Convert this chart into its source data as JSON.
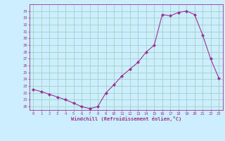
{
  "x": [
    0,
    1,
    2,
    3,
    4,
    5,
    6,
    7,
    8,
    9,
    10,
    11,
    12,
    13,
    14,
    15,
    16,
    17,
    18,
    19,
    20,
    21,
    22,
    23
  ],
  "y": [
    22.5,
    22.2,
    21.8,
    21.4,
    21.0,
    20.5,
    20.0,
    19.7,
    20.0,
    22.0,
    23.2,
    24.5,
    25.5,
    26.5,
    28.0,
    29.0,
    33.5,
    33.3,
    33.8,
    34.0,
    33.5,
    30.5,
    27.0,
    24.2
  ],
  "line_color": "#993399",
  "marker_color": "#993399",
  "bg_color": "#cceeff",
  "grid_color": "#99ccbb",
  "xlabel": "Windchill (Refroidissement éolien,°C)",
  "xlabel_color": "#993399",
  "tick_color": "#993399",
  "ylim": [
    19.5,
    35.0
  ],
  "yticks": [
    20,
    21,
    22,
    23,
    24,
    25,
    26,
    27,
    28,
    29,
    30,
    31,
    32,
    33,
    34
  ],
  "xticks": [
    0,
    1,
    2,
    3,
    4,
    5,
    6,
    7,
    8,
    9,
    10,
    11,
    12,
    13,
    14,
    15,
    16,
    17,
    18,
    19,
    20,
    21,
    22,
    23
  ],
  "xlim": [
    -0.5,
    23.5
  ]
}
